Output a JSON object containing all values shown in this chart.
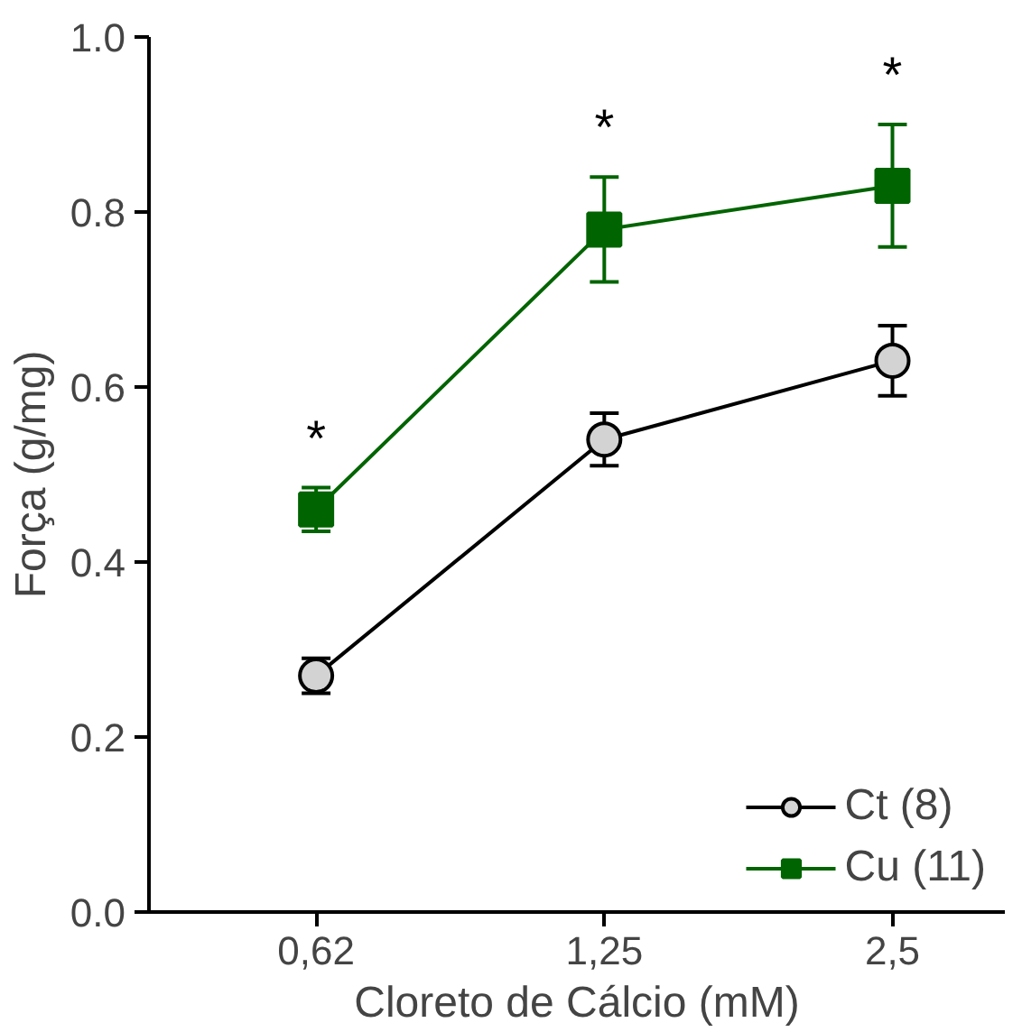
{
  "chart_data": {
    "type": "line",
    "xlabel": "Cloreto de Cálcio (mM)",
    "ylabel": "Força (g/mg)",
    "categories": [
      "0,62",
      "1,25",
      "2,5"
    ],
    "series": [
      {
        "name": "Ct (8)",
        "color": "#000000",
        "colors": [
          "#d3d3d3",
          "#d3d3d3",
          "#d3d3d3"
        ],
        "marker": "circle",
        "values": [
          0.27,
          0.54,
          0.63
        ],
        "errors": [
          0.02,
          0.03,
          0.04
        ]
      },
      {
        "name": "Cu (11)",
        "color": "#006400",
        "colors": [
          "#006400",
          "#006400",
          "#006400"
        ],
        "marker": "square",
        "values": [
          0.46,
          0.78,
          0.83
        ],
        "errors": [
          0.025,
          0.06,
          0.07
        ]
      }
    ],
    "ylim": [
      0,
      1.0
    ],
    "yticks": [
      {
        "value": 0,
        "label": "0.0"
      },
      {
        "value": 0.2,
        "label": "0.2"
      },
      {
        "value": 0.4,
        "label": "0.4"
      },
      {
        "value": 0.6,
        "label": "0.6"
      },
      {
        "value": 0.8,
        "label": "0.8"
      },
      {
        "value": 1.0,
        "label": "1.0"
      }
    ],
    "annotations": [
      "*",
      "*",
      "*"
    ],
    "grid": false,
    "legend": "bottom right",
    "line_style": "solid"
  }
}
